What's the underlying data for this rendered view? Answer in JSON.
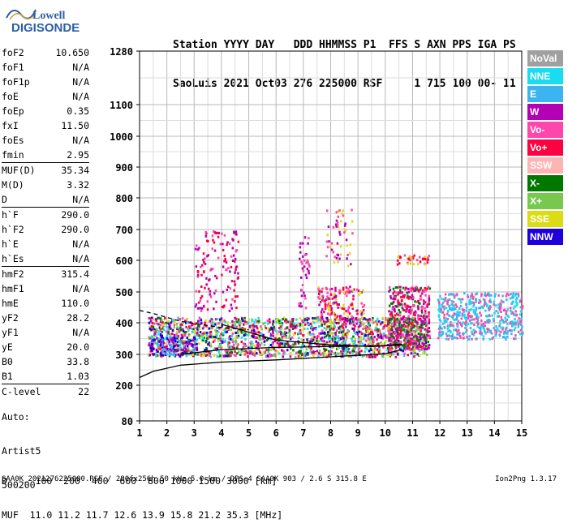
{
  "logo": {
    "line1": "Lowell",
    "line2": "DIGISONDE"
  },
  "header": {
    "line1": "Station YYYY DAY   DDD HHMMSS P1  FFS S AXN PPS IGA PS",
    "line2": "SaoLuis 2021 Oct03 276 225000 RSF     1 715 100 00- 11"
  },
  "params": [
    {
      "group": [
        {
          "label": "foF2",
          "value": "10.650"
        },
        {
          "label": "foF1",
          "value": "N/A"
        },
        {
          "label": "foF1p",
          "value": "N/A"
        },
        {
          "label": "foE",
          "value": "N/A"
        },
        {
          "label": "foEp",
          "value": "0.35"
        },
        {
          "label": "fxI",
          "value": "11.50"
        },
        {
          "label": "foEs",
          "value": "N/A"
        },
        {
          "label": "fmin",
          "value": "2.95"
        }
      ]
    },
    {
      "group": [
        {
          "label": "MUF(D)",
          "value": "35.34"
        },
        {
          "label": "M(D)",
          "value": "3.32"
        },
        {
          "label": "D",
          "value": "N/A"
        }
      ]
    },
    {
      "group": [
        {
          "label": "h`F",
          "value": "290.0"
        },
        {
          "label": "h`F2",
          "value": "290.0"
        },
        {
          "label": "h`E",
          "value": "N/A"
        },
        {
          "label": "h`Es",
          "value": "N/A"
        }
      ]
    },
    {
      "group": [
        {
          "label": "hmF2",
          "value": "315.4"
        },
        {
          "label": "hmF1",
          "value": "N/A"
        },
        {
          "label": "hmE",
          "value": "110.0"
        },
        {
          "label": "yF2",
          "value": "28.2"
        },
        {
          "label": "yF1",
          "value": "N/A"
        },
        {
          "label": "yE",
          "value": "20.0"
        },
        {
          "label": "B0",
          "value": "33.8"
        },
        {
          "label": "B1",
          "value": "1.03"
        }
      ]
    },
    {
      "group": [
        {
          "label": "C-level",
          "value": "22"
        }
      ]
    }
  ],
  "auto": {
    "line1": "Auto:",
    "line2": "Artist5",
    "line3": "500200"
  },
  "muf_table": {
    "line1": "D     100  200  400  600  800 1000 1500 3000 [km]",
    "line2": "MUF  11.0 11.2 11.7 12.6 13.9 15.8 21.2 35.3 [MHz]"
  },
  "footer": {
    "left": "SAA0K_2021276225000.RSF / 280fx256h 50 kHz 5.0 km / DPS-4 SAA0K 903 / 2.6 S 315.8 E",
    "right": "Ion2Png 1.3.17"
  },
  "legend": [
    {
      "label": "NoVal",
      "color": "#a0a0a0"
    },
    {
      "label": "NNE",
      "color": "#19dcf0"
    },
    {
      "label": "E",
      "color": "#3cb4f0"
    },
    {
      "label": "W",
      "color": "#b400b4"
    },
    {
      "label": "Vo-",
      "color": "#ff46aa"
    },
    {
      "label": "Vo+",
      "color": "#ff0040"
    },
    {
      "label": "SSW",
      "color": "#ffb4b4"
    },
    {
      "label": "X-",
      "color": "#007800"
    },
    {
      "label": "X+",
      "color": "#78c850"
    },
    {
      "label": "SSE",
      "color": "#dcdc14"
    },
    {
      "label": "NNW",
      "color": "#1e00dc"
    }
  ],
  "chart_data": {
    "type": "scatter",
    "xlabel": "",
    "ylabel": "",
    "xlim": [
      1,
      15
    ],
    "ylim": [
      80,
      1280
    ],
    "x_ticks": [
      "1",
      "2",
      "3",
      "4",
      "5",
      "6",
      "7",
      "8",
      "9",
      "10",
      "11",
      "12",
      "13",
      "14",
      "15"
    ],
    "y_ticks": [
      "80",
      "200",
      "300",
      "400",
      "500",
      "600",
      "700",
      "800",
      "900",
      "1000",
      "1100",
      "1280"
    ],
    "y_tick_values": [
      80,
      200,
      300,
      400,
      500,
      600,
      700,
      800,
      900,
      1000,
      1100,
      1280
    ],
    "grid": true,
    "series": [
      {
        "name": "NoVal",
        "color": "#a0a0a0"
      },
      {
        "name": "NNE",
        "color": "#19dcf0"
      },
      {
        "name": "E",
        "color": "#3cb4f0"
      },
      {
        "name": "W",
        "color": "#b400b4"
      },
      {
        "name": "Vo-",
        "color": "#ff46aa"
      },
      {
        "name": "Vo+",
        "color": "#ff0040"
      },
      {
        "name": "SSW",
        "color": "#ffb4b4"
      },
      {
        "name": "X-",
        "color": "#007800"
      },
      {
        "name": "X+",
        "color": "#78c850"
      },
      {
        "name": "SSE",
        "color": "#dcdc14"
      },
      {
        "name": "NNW",
        "color": "#1e00dc"
      }
    ],
    "clusters": [
      {
        "x": [
          1.3,
          11.5
        ],
        "y": [
          295,
          420
        ],
        "density": 5,
        "colors": [
          "#ff46aa",
          "#ff0040",
          "#b400b4",
          "#1e00dc",
          "#007800",
          "#dcdc14",
          "#78c850",
          "#19dcf0"
        ]
      },
      {
        "x": [
          1.3,
          3.0
        ],
        "y": [
          300,
          360
        ],
        "density": 4,
        "colors": [
          "#1e00dc",
          "#b400b4",
          "#3cb4f0"
        ]
      },
      {
        "x": [
          3.0,
          4.6
        ],
        "y": [
          440,
          700
        ],
        "density": 1.2,
        "colors": [
          "#b400b4",
          "#ff46aa",
          "#ff0040"
        ]
      },
      {
        "x": [
          6.8,
          7.2
        ],
        "y": [
          440,
          680
        ],
        "density": 1.5,
        "colors": [
          "#b400b4",
          "#ff46aa"
        ]
      },
      {
        "x": [
          7.5,
          9.2
        ],
        "y": [
          400,
          520
        ],
        "density": 3,
        "colors": [
          "#ff0040",
          "#ff46aa",
          "#b400b4",
          "#dcdc14"
        ]
      },
      {
        "x": [
          7.8,
          8.8
        ],
        "y": [
          580,
          770
        ],
        "density": 1,
        "colors": [
          "#b400b4",
          "#ff46aa",
          "#dcdc14"
        ]
      },
      {
        "x": [
          10.1,
          11.6
        ],
        "y": [
          320,
          520
        ],
        "density": 5,
        "colors": [
          "#ff0040",
          "#ff46aa",
          "#b400b4",
          "#007800"
        ]
      },
      {
        "x": [
          10.4,
          11.6
        ],
        "y": [
          590,
          620
        ],
        "density": 4,
        "colors": [
          "#ff0040",
          "#ff46aa",
          "#dcdc14"
        ]
      },
      {
        "x": [
          11.9,
          15.0
        ],
        "y": [
          350,
          500
        ],
        "density": 4,
        "colors": [
          "#19dcf0",
          "#3cb4f0",
          "#ff46aa"
        ]
      }
    ],
    "curves": [
      {
        "style": "solid",
        "x": [
          1.0,
          1.5,
          2.5,
          4.0,
          6.0,
          8.0,
          10.0,
          10.6
        ],
        "y": [
          225,
          245,
          265,
          275,
          282,
          292,
          302,
          315
        ]
      },
      {
        "style": "solid",
        "x": [
          2.5,
          4.0,
          6.0,
          8.0,
          10.0,
          10.6
        ],
        "y": [
          300,
          315,
          322,
          325,
          328,
          333
        ]
      },
      {
        "style": "solid",
        "x": [
          4.0,
          6.0,
          8.0,
          9.5,
          10.6
        ],
        "y": [
          395,
          345,
          330,
          325,
          330
        ]
      },
      {
        "style": "dashed",
        "x": [
          1.0,
          1.5,
          2.5,
          4.0,
          5.0
        ],
        "y": [
          440,
          430,
          405,
          385,
          378
        ]
      }
    ]
  }
}
